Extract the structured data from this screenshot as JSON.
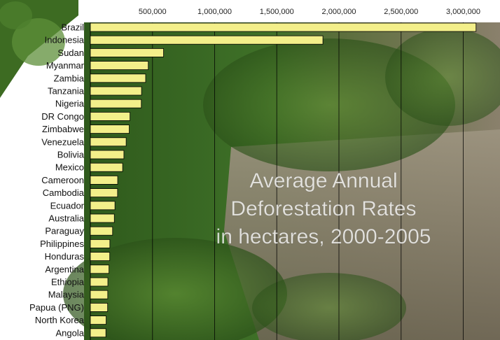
{
  "chart_data": {
    "type": "bar",
    "orientation": "horizontal",
    "title_lines": [
      "Average Annual",
      "Deforestation Rates",
      "in hectares, 2000-2005"
    ],
    "categories": [
      "Brazil",
      "Indonesia",
      "Sudan",
      "Myanmar",
      "Zambia",
      "Tanzania",
      "Nigeria",
      "DR Congo",
      "Zimbabwe",
      "Venezuela",
      "Bolivia",
      "Mexico",
      "Cameroon",
      "Cambodia",
      "Ecuador",
      "Australia",
      "Paraguay",
      "Philippines",
      "Honduras",
      "Argentina",
      "Ethiopia",
      "Malaysia",
      "Papua (PNG)",
      "North Korea",
      "Angola"
    ],
    "values": [
      3103000,
      1871000,
      589000,
      466000,
      445000,
      412000,
      410000,
      319000,
      313000,
      288000,
      270000,
      260000,
      220000,
      219000,
      198000,
      193000,
      179000,
      157000,
      156000,
      150000,
      141000,
      140000,
      139000,
      127000,
      125000
    ],
    "x_ticks": [
      500000,
      1000000,
      1500000,
      2000000,
      2500000,
      3000000
    ],
    "x_tick_labels": [
      "500,000",
      "1,000,000",
      "1,500,000",
      "2,000,000",
      "2,500,000",
      "3,000,000"
    ],
    "xlim": [
      0,
      3200000
    ],
    "grid": true,
    "bar_color": "#f3ef8a",
    "bar_edge_color": "#000000",
    "xlabel": "",
    "ylabel": ""
  }
}
